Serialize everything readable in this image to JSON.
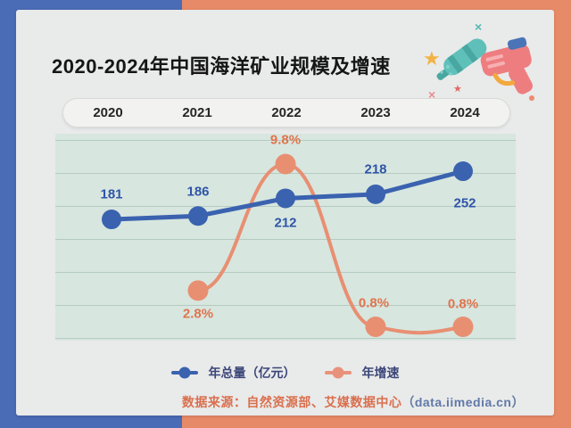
{
  "title": "2020-2024年中国海洋矿业规模及增速",
  "years": [
    "2020",
    "2021",
    "2022",
    "2023",
    "2024"
  ],
  "chart_data": {
    "type": "line",
    "categories": [
      "2020",
      "2021",
      "2022",
      "2023",
      "2024"
    ],
    "series": [
      {
        "name": "年总量（亿元）",
        "values": [
          181,
          186,
          212,
          218,
          252
        ],
        "color": "#3a62af",
        "label_color": "#2f55a8"
      },
      {
        "name": "年增速",
        "values": [
          null,
          2.8,
          9.8,
          0.8,
          0.8
        ],
        "unit": "%",
        "color": "#e88f72",
        "label_color": "#e0744d"
      }
    ],
    "point_labels": {
      "total": [
        "181",
        "186",
        "212",
        "218",
        "252"
      ],
      "growth": [
        "",
        "2.8%",
        "9.8%",
        "0.8%",
        "0.8%"
      ]
    },
    "grid": true,
    "gridline_count": 7,
    "legend_position": "bottom",
    "plot_background": "#d7e6df"
  },
  "legend": {
    "total_label": "年总量（亿元）",
    "growth_label": "年增速"
  },
  "footer": {
    "source_text": "数据来源：自然资源部、艾媒数据中心",
    "source_url": "（data.iimedia.cn）"
  },
  "decoration": {
    "illustration": "water-gun-with-stars"
  },
  "colors": {
    "bg_left": "#4a6bb5",
    "bg_right": "#e78a67",
    "card": "#e9eaea",
    "plot_bg": "#d7e6df",
    "blue_series": "#3a62af",
    "orange_series": "#e88f72",
    "title_text": "#161616",
    "legend_text": "#3b4679",
    "footer_orange": "#d96f4e",
    "footer_blue": "#6079a8"
  }
}
